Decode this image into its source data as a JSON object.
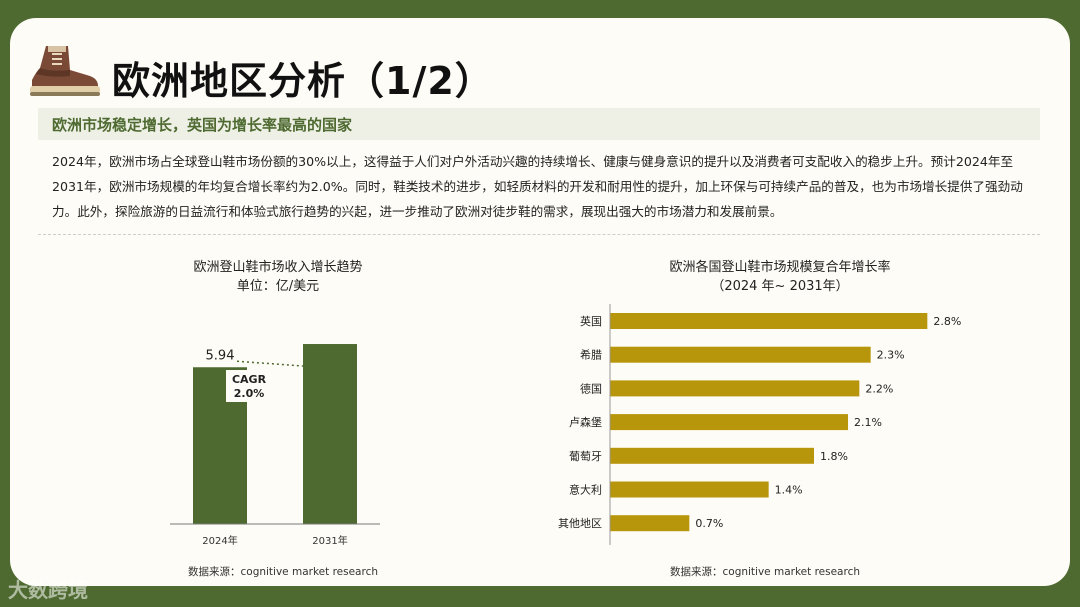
{
  "page": {
    "title": "欧洲地区分析（1/2）",
    "subtitle": "欧洲市场稳定增长，英国为增长率最高的国家",
    "paragraph": "2024年，欧洲市场占全球登山鞋市场份额的30%以上，这得益于人们对户外活动兴趣的持续增长、健康与健身意识的提升以及消费者可支配收入的稳步上升。预计2024年至2031年，欧洲市场规模的年均复合增长率约为2.0%。同时，鞋类技术的进步，如轻质材料的开发和耐用性的提升，加上环保与可持续产品的普及，也为市场增长提供了强劲动力。此外，探险旅游的日益流行和体验式旅行趋势的兴起，进一步推动了欧洲对徒步鞋的需求，展现出强大的市场潜力和发展前景。",
    "watermark": "大数跨境",
    "icon": "hiking-boot-icon"
  },
  "chart_data": [
    {
      "type": "bar",
      "title": "欧洲登山鞋市场收入增长趋势",
      "subtitle": "单位：亿/美元",
      "categories": [
        "2024年",
        "2031年"
      ],
      "values": [
        5.94,
        6.82
      ],
      "data_labels": [
        "5.94",
        ""
      ],
      "annotation": {
        "line1": "CAGR",
        "line2": "2.0%"
      },
      "source": "数据来源：cognitive market research",
      "color": "#4e6a30",
      "ylim": [
        0,
        7.2
      ]
    },
    {
      "type": "bar",
      "orientation": "horizontal",
      "title": "欧洲各国登山鞋市场规模复合年增长率",
      "subtitle": "（2024 年~ 2031年）",
      "categories": [
        "英国",
        "希腊",
        "德国",
        "卢森堡",
        "葡萄牙",
        "意大利",
        "其他地区"
      ],
      "values": [
        2.8,
        2.3,
        2.2,
        2.1,
        1.8,
        1.4,
        0.7
      ],
      "data_labels": [
        "2.8%",
        "2.3%",
        "2.2%",
        "2.1%",
        "1.8%",
        "1.4%",
        "0.7%"
      ],
      "source": "数据来源：cognitive market research",
      "color": "#b8960c",
      "xlim": [
        0,
        3.0
      ]
    }
  ]
}
